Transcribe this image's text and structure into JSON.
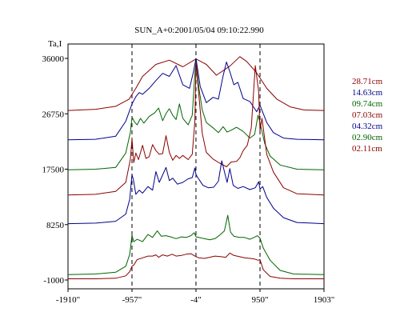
{
  "chart_data": {
    "type": "line",
    "title": "SUN_A+0:2001/05/04 09:10:22.990",
    "ylabel": "Ta,I",
    "xlabel": "",
    "xlim": [
      -1910,
      1903
    ],
    "ylim": [
      -1000,
      36000
    ],
    "x_tick_labels": [
      "-1910\"",
      "-957\"",
      "-4\"",
      "950\"",
      "1903\""
    ],
    "x_tick_values": [
      -1910,
      -957,
      -4,
      950,
      1903
    ],
    "y_tick_labels": [
      "36000",
      "26750",
      "17500",
      "8250",
      "-1000"
    ],
    "y_tick_values": [
      36000,
      26750,
      17500,
      8250,
      -1000
    ],
    "dashed_vlines": [
      -957,
      -4,
      950
    ],
    "grid": false,
    "legend_position": "right",
    "series": [
      {
        "name": "28.71cm",
        "color": "#8b0000",
        "x": [
          -1910,
          -1500,
          -1200,
          -1000,
          -900,
          -800,
          -600,
          -400,
          -200,
          -4,
          150,
          300,
          500,
          650,
          750,
          900,
          1050,
          1200,
          1400,
          1600,
          1903
        ],
        "y": [
          27300,
          27500,
          28000,
          29200,
          31000,
          33000,
          35000,
          35700,
          34600,
          35900,
          35000,
          33200,
          34700,
          36300,
          35500,
          33600,
          31000,
          29200,
          27900,
          27400,
          27300
        ]
      },
      {
        "name": "14.63cm",
        "color": "#00008b",
        "x": [
          -1910,
          -1500,
          -1200,
          -1050,
          -957,
          -900,
          -850,
          -800,
          -700,
          -600,
          -500,
          -400,
          -300,
          -200,
          -100,
          -40,
          -4,
          60,
          150,
          250,
          330,
          400,
          450,
          500,
          560,
          620,
          700,
          800,
          900,
          950,
          1050,
          1150,
          1300,
          1500,
          1903
        ],
        "y": [
          22400,
          22500,
          23000,
          25500,
          28400,
          29600,
          30300,
          30000,
          31000,
          32300,
          33500,
          33000,
          34800,
          31600,
          31000,
          33800,
          36000,
          31300,
          28600,
          29500,
          29200,
          33100,
          35400,
          33800,
          31600,
          32000,
          29300,
          28800,
          27100,
          28200,
          25300,
          23600,
          22700,
          22500,
          22400
        ]
      },
      {
        "name": "09.74cm",
        "color": "#006400",
        "x": [
          -1910,
          -1500,
          -1200,
          -1050,
          -980,
          -957,
          -920,
          -880,
          -830,
          -780,
          -700,
          -620,
          -560,
          -500,
          -450,
          -400,
          -350,
          -300,
          -250,
          -200,
          -120,
          -60,
          -20,
          -4,
          40,
          90,
          150,
          250,
          330,
          400,
          460,
          520,
          600,
          700,
          800,
          870,
          920,
          950,
          1020,
          1100,
          1250,
          1500,
          1903
        ],
        "y": [
          17400,
          17500,
          17800,
          20200,
          23700,
          26200,
          25400,
          24900,
          26000,
          25200,
          26300,
          26900,
          27700,
          25600,
          26800,
          27600,
          26500,
          25800,
          28400,
          26000,
          24900,
          26500,
          33500,
          35400,
          31000,
          27400,
          25300,
          24400,
          23600,
          24600,
          23700,
          24000,
          24500,
          23800,
          22700,
          23300,
          26500,
          25300,
          21800,
          19700,
          18200,
          17500,
          17400
        ]
      },
      {
        "name": "07.03cm",
        "color": "#8b0000",
        "x": [
          -1910,
          -1500,
          -1200,
          -1050,
          -980,
          -957,
          -930,
          -900,
          -860,
          -800,
          -750,
          -700,
          -650,
          -600,
          -550,
          -500,
          -450,
          -400,
          -350,
          -300,
          -250,
          -200,
          -120,
          -60,
          -20,
          -4,
          40,
          90,
          150,
          250,
          350,
          450,
          520,
          600,
          650,
          700,
          760,
          820,
          880,
          930,
          950,
          980,
          1050,
          1150,
          1300,
          1500,
          1903
        ],
        "y": [
          13200,
          13300,
          13800,
          15300,
          19200,
          22600,
          18600,
          20200,
          19100,
          21500,
          19300,
          19600,
          21600,
          20600,
          20000,
          20100,
          23100,
          20300,
          19000,
          19800,
          19300,
          19800,
          19100,
          20000,
          25500,
          35200,
          29700,
          23500,
          20300,
          19200,
          18500,
          17900,
          18700,
          18800,
          19400,
          20600,
          21500,
          24400,
          34800,
          30500,
          24000,
          26000,
          20000,
          17000,
          14400,
          13400,
          13200
        ]
      },
      {
        "name": "04.32cm",
        "color": "#00008b",
        "x": [
          -1910,
          -1500,
          -1200,
          -1050,
          -990,
          -957,
          -935,
          -900,
          -850,
          -800,
          -720,
          -650,
          -600,
          -550,
          -450,
          -400,
          -350,
          -280,
          -200,
          -120,
          -60,
          -20,
          -4,
          40,
          100,
          180,
          260,
          330,
          380,
          420,
          460,
          500,
          550,
          620,
          700,
          800,
          880,
          930,
          950,
          990,
          1050,
          1150,
          1300,
          1500,
          1903
        ],
        "y": [
          8400,
          8500,
          8800,
          10000,
          12500,
          16600,
          15700,
          13300,
          14000,
          13500,
          14600,
          14000,
          17100,
          15300,
          17800,
          15600,
          16000,
          15000,
          15300,
          15900,
          16100,
          17700,
          16600,
          15800,
          14800,
          14400,
          14500,
          15500,
          18900,
          17100,
          15300,
          17600,
          14800,
          14300,
          14600,
          14100,
          14400,
          15400,
          14200,
          14600,
          12800,
          11000,
          9400,
          8600,
          8400
        ]
      },
      {
        "name": "02.90cm",
        "color": "#006400",
        "x": [
          -1910,
          -1500,
          -1200,
          -1050,
          -990,
          -957,
          -930,
          -880,
          -800,
          -720,
          -650,
          -580,
          -520,
          -450,
          -380,
          -300,
          -220,
          -150,
          -80,
          -30,
          -4,
          40,
          120,
          200,
          280,
          350,
          420,
          470,
          510,
          560,
          640,
          720,
          800,
          860,
          910,
          950,
          1000,
          1100,
          1250,
          1450,
          1903
        ],
        "y": [
          -100,
          0,
          300,
          1300,
          3300,
          6500,
          5400,
          5800,
          5400,
          6600,
          6100,
          7200,
          6300,
          6400,
          6200,
          5900,
          6200,
          6100,
          6400,
          6900,
          6200,
          6100,
          5900,
          5700,
          5900,
          6500,
          7200,
          9800,
          7000,
          6300,
          6100,
          6100,
          5800,
          6100,
          6400,
          6000,
          4300,
          2300,
          600,
          0,
          -100
        ]
      },
      {
        "name": "02.11cm",
        "color": "#8b0000",
        "x": [
          -1910,
          -1500,
          -1200,
          -1050,
          -990,
          -957,
          -930,
          -880,
          -800,
          -720,
          -650,
          -600,
          -560,
          -500,
          -430,
          -360,
          -300,
          -220,
          -150,
          -80,
          -20,
          -4,
          40,
          120,
          200,
          280,
          360,
          440,
          500,
          560,
          640,
          720,
          800,
          870,
          920,
          950,
          1000,
          1100,
          1250,
          1450,
          1903
        ],
        "y": [
          -800,
          -800,
          -700,
          -300,
          400,
          1300,
          1500,
          2400,
          2700,
          3000,
          3000,
          3200,
          2800,
          3200,
          3000,
          3300,
          3000,
          3100,
          3300,
          3400,
          3000,
          2900,
          2700,
          2600,
          2800,
          3000,
          2900,
          2800,
          3500,
          3100,
          2900,
          2700,
          2600,
          2500,
          2300,
          2400,
          700,
          -400,
          -700,
          -800,
          -800
        ]
      }
    ]
  },
  "legend": [
    {
      "label": "28.71cm",
      "color": "#8b0000"
    },
    {
      "label": "14.63cm",
      "color": "#00008b"
    },
    {
      "label": "09.74cm",
      "color": "#006400"
    },
    {
      "label": "07.03cm",
      "color": "#8b0000"
    },
    {
      "label": "04.32cm",
      "color": "#00008b"
    },
    {
      "label": "02.90cm",
      "color": "#006400"
    },
    {
      "label": "02.11cm",
      "color": "#8b0000"
    }
  ]
}
